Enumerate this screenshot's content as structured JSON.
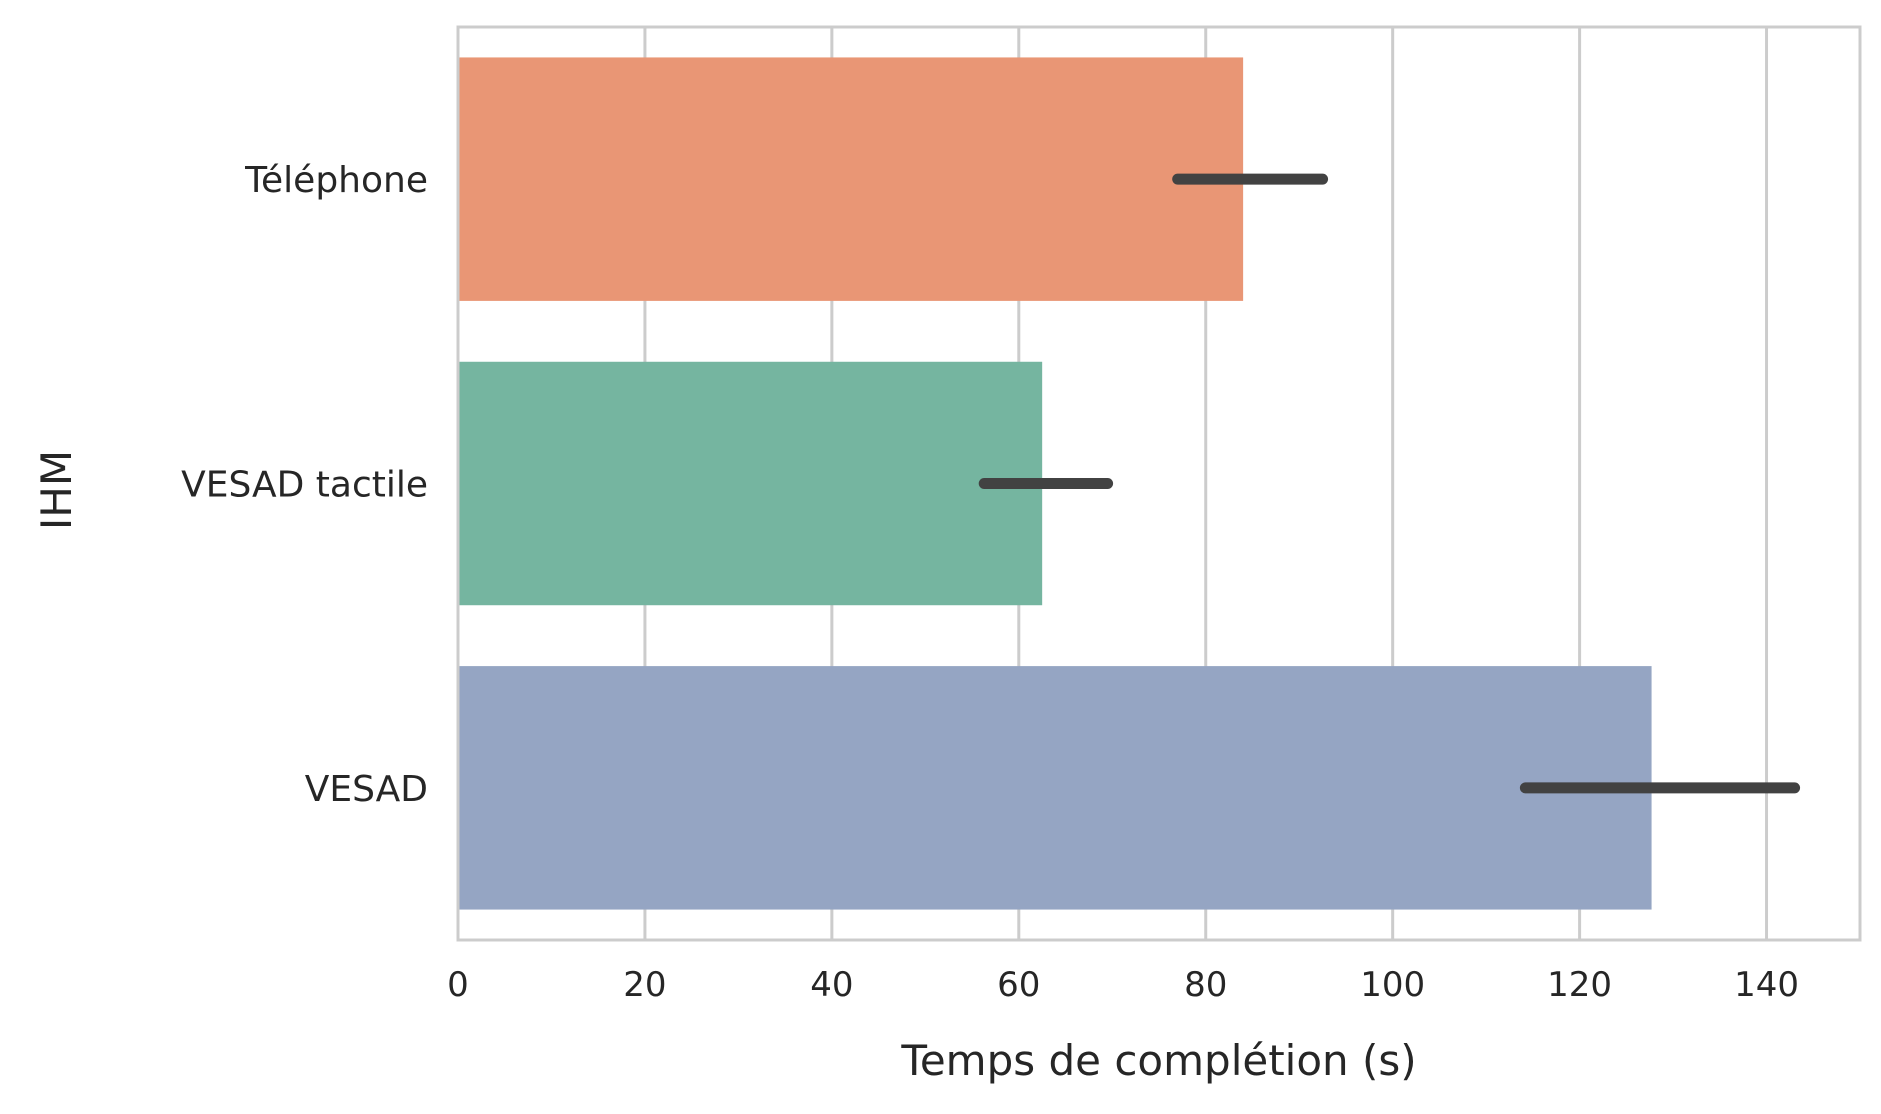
{
  "chart_data": {
    "type": "bar",
    "orientation": "horizontal",
    "categories": [
      "Téléphone",
      "VESAD tactile",
      "VESAD"
    ],
    "values": [
      84,
      62.5,
      127.7
    ],
    "error_bars": [
      {
        "low": 77,
        "high": 92.5
      },
      {
        "low": 56.3,
        "high": 69.5
      },
      {
        "low": 114.2,
        "high": 143
      }
    ],
    "colors": [
      "#e99675",
      "#75b5a0",
      "#95a5c3"
    ],
    "error_color": "#424242",
    "xlabel": "Temps de complétion (s)",
    "ylabel": "IHM",
    "xlim": [
      0,
      150
    ],
    "xticks": [
      0,
      20,
      40,
      60,
      80,
      100,
      120,
      140
    ],
    "grid": "vertical",
    "grid_color": "#cccccc",
    "frame_color": "#cccccc"
  }
}
